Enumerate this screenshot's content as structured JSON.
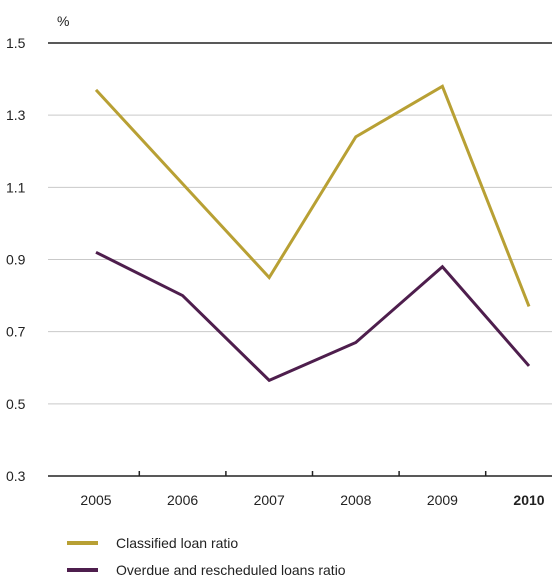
{
  "chart_data": {
    "type": "line",
    "unit_label": "%",
    "categories": [
      "2005",
      "2006",
      "2007",
      "2008",
      "2009",
      "2010"
    ],
    "highlight_category": "2010",
    "y_ticks": [
      "1.5",
      "1.3",
      "1.1",
      "0.9",
      "0.7",
      "0.5",
      "0.3"
    ],
    "ylim": [
      0.3,
      1.5
    ],
    "series": [
      {
        "name": "Classified loan ratio",
        "color": "#B8A034",
        "values": [
          1.37,
          1.11,
          0.85,
          1.24,
          1.38,
          0.77
        ]
      },
      {
        "name": "Overdue and rescheduled loans ratio",
        "color": "#4E1E4D",
        "values": [
          0.92,
          0.8,
          0.565,
          0.67,
          0.88,
          0.605
        ]
      }
    ],
    "grid": true,
    "legend_position": "bottom-left"
  }
}
